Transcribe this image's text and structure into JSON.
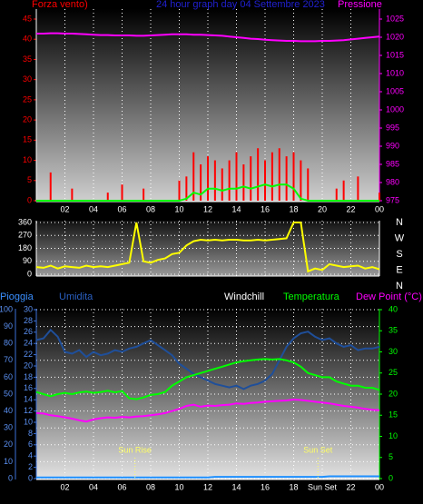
{
  "chart_data": [
    {
      "type": "bar",
      "title": "24 hour graph day 04 Settembre 2023",
      "ylabel": "Forza vento)",
      "y2label": "Pressione",
      "x": [
        0,
        0.5,
        1,
        1.5,
        2,
        2.5,
        3,
        3.5,
        4,
        4.5,
        5,
        5.5,
        6,
        6.5,
        7,
        7.5,
        8,
        8.5,
        9,
        9.5,
        10,
        10.5,
        11,
        11.5,
        12,
        12.5,
        13,
        13.5,
        14,
        14.5,
        15,
        15.5,
        16,
        16.5,
        17,
        17.5,
        18,
        18.5,
        19,
        19.5,
        20,
        20.5,
        21,
        21.5,
        22,
        22.5,
        23,
        23.5,
        24
      ],
      "xlim": [
        0,
        24
      ],
      "xticks": [
        {
          "value": 2,
          "label": "02"
        },
        {
          "value": 4,
          "label": "04"
        },
        {
          "value": 6,
          "label": "06"
        },
        {
          "value": 8,
          "label": "08"
        },
        10,
        12,
        14,
        16,
        18,
        20,
        22,
        {
          "value": 24,
          "label": "00"
        }
      ],
      "ylim": [
        0,
        45
      ],
      "yticks": [
        0,
        5,
        10,
        15,
        20,
        25,
        30,
        35,
        40,
        45
      ],
      "y2lim": [
        975,
        1025
      ],
      "y2ticks": [
        975,
        980,
        985,
        990,
        995,
        1000,
        1005,
        1010,
        1015,
        1020,
        1025
      ],
      "grid": true,
      "series": [
        {
          "color": "#ff0000",
          "values": [
            0,
            0,
            7,
            0,
            0,
            3,
            0,
            0,
            0,
            0,
            2,
            0,
            4,
            0,
            0,
            3,
            0,
            0,
            0,
            0,
            5,
            6,
            12,
            9,
            11,
            10,
            8,
            10,
            12,
            9,
            11,
            13,
            10,
            12,
            13,
            11,
            12,
            10,
            8,
            0,
            0,
            0,
            3,
            5,
            0,
            6,
            0,
            0,
            2
          ]
        },
        {
          "type": "line",
          "color": "#00ff00",
          "values": [
            0,
            0,
            0,
            0,
            0,
            0,
            0,
            0,
            0,
            0,
            0,
            0,
            0,
            0,
            0,
            0,
            0,
            0,
            0,
            0,
            0,
            0.5,
            2,
            1.5,
            3,
            3,
            2.5,
            3,
            3,
            3.5,
            3,
            3.5,
            4,
            3.5,
            4,
            4,
            3,
            0.5,
            0,
            0,
            0,
            0,
            0,
            0,
            0,
            0,
            0,
            0,
            0
          ]
        },
        {
          "type": "line",
          "axis": "y2",
          "color": "#ff00ff",
          "values": [
            1021,
            1021,
            1021.1,
            1021.1,
            1021,
            1021,
            1020.9,
            1020.8,
            1020.7,
            1020.6,
            1020.6,
            1020.5,
            1020.5,
            1020.5,
            1020.4,
            1020.4,
            1020.5,
            1020.6,
            1020.7,
            1020.8,
            1020.8,
            1020.8,
            1020.7,
            1020.7,
            1020.6,
            1020.5,
            1020.4,
            1020.2,
            1020,
            1019.8,
            1019.6,
            1019.5,
            1019.3,
            1019.2,
            1019.1,
            1019,
            1019,
            1018.9,
            1018.9,
            1018.9,
            1019,
            1019,
            1019.1,
            1019.2,
            1019.4,
            1019.6,
            1019.8,
            1020,
            1020.2
          ]
        }
      ]
    },
    {
      "type": "line",
      "x": [
        0,
        0.5,
        1,
        1.5,
        2,
        2.5,
        3,
        3.5,
        4,
        4.5,
        5,
        5.5,
        6,
        6.5,
        7,
        7.5,
        8,
        8.5,
        9,
        9.5,
        10,
        10.5,
        11,
        11.5,
        12,
        12.5,
        13,
        13.5,
        14,
        14.5,
        15,
        15.5,
        16,
        16.5,
        17,
        17.5,
        18,
        18.5,
        19,
        19.5,
        20,
        20.5,
        21,
        21.5,
        22,
        22.5,
        23,
        23.5,
        24
      ],
      "xlim": [
        0,
        24
      ],
      "xticks": [
        2,
        4,
        6,
        8,
        10,
        12,
        14,
        16,
        18,
        20,
        22,
        24
      ],
      "ylim": [
        0,
        360
      ],
      "yticks": [
        0,
        90,
        180,
        270,
        360
      ],
      "grid": true,
      "dir_labels": [
        "N",
        "W",
        "S",
        "E",
        "N"
      ],
      "series": [
        {
          "color": "#ffff00",
          "values": [
            50,
            45,
            60,
            40,
            55,
            50,
            45,
            60,
            50,
            55,
            50,
            60,
            70,
            80,
            360,
            90,
            80,
            100,
            110,
            140,
            150,
            200,
            230,
            240,
            235,
            240,
            235,
            240,
            240,
            235,
            235,
            240,
            235,
            240,
            245,
            250,
            360,
            360,
            20,
            40,
            30,
            70,
            60,
            50,
            55,
            60,
            40,
            50,
            35
          ]
        }
      ]
    },
    {
      "type": "line",
      "x": [
        0,
        0.5,
        1,
        1.5,
        2,
        2.5,
        3,
        3.5,
        4,
        4.5,
        5,
        5.5,
        6,
        6.5,
        7,
        7.5,
        8,
        8.5,
        9,
        9.5,
        10,
        10.5,
        11,
        11.5,
        12,
        12.5,
        13,
        13.5,
        14,
        14.5,
        15,
        15.5,
        16,
        16.5,
        17,
        17.5,
        18,
        18.5,
        19,
        19.5,
        20,
        20.5,
        21,
        21.5,
        22,
        22.5,
        23,
        23.5,
        24
      ],
      "xlim": [
        0,
        24
      ],
      "xticks": [
        {
          "value": 2,
          "label": "02"
        },
        {
          "value": 4,
          "label": "04"
        },
        {
          "value": 6,
          "label": "06"
        },
        {
          "value": 8,
          "label": "08"
        },
        10,
        12,
        14,
        16,
        18,
        {
          "value": 20,
          "label": "Sun Set"
        },
        22,
        {
          "value": 24,
          "label": "00"
        }
      ],
      "ylim": [
        0,
        100
      ],
      "yticks": [
        0,
        10,
        20,
        30,
        40,
        50,
        60,
        70,
        80,
        90,
        100
      ],
      "y3lim": [
        0,
        30
      ],
      "y3ticks": [
        0,
        2,
        4,
        6,
        8,
        10,
        12,
        14,
        16,
        18,
        20,
        22,
        24,
        26,
        28,
        30
      ],
      "y2lim": [
        0,
        40
      ],
      "y2ticks": [
        0,
        5,
        10,
        15,
        20,
        25,
        30,
        35,
        40
      ],
      "grid": true,
      "labels": [
        "Windchill"
      ],
      "annotations": [
        {
          "text": "Sun Rise",
          "x": 6.9
        },
        {
          "text": "Sun Set",
          "x": 19.7
        }
      ],
      "series": [
        {
          "name": "Pioggia",
          "axis": "y3",
          "color": "#1e90ff",
          "values": [
            0.2,
            0.2,
            0.2,
            0.2,
            0.2,
            0.2,
            0.2,
            0.2,
            0.2,
            0.2,
            0.2,
            0.2,
            0.2,
            0.2,
            0.2,
            0.2,
            0.2,
            0.2,
            0.2,
            0.2,
            0.2,
            0.2,
            0.2,
            0.2,
            0.2,
            0.3,
            0.3,
            0.3,
            0.3,
            0.3,
            0.3,
            0.3,
            0.3,
            0.3,
            0.3,
            0.3,
            0.3,
            0.3,
            0.3,
            0.3,
            0.3,
            0.4,
            0.4,
            0.4,
            0.4,
            0.4,
            0.4,
            0.4,
            0.4
          ]
        },
        {
          "name": "Umidita",
          "color": "#1f4f9a",
          "values": [
            82,
            83,
            88,
            84,
            75,
            74,
            76,
            72,
            75,
            73,
            74,
            76,
            75,
            77,
            78,
            80,
            82,
            79,
            76,
            73,
            68,
            65,
            62,
            60,
            58,
            56,
            55,
            54,
            55,
            53,
            55,
            56,
            58,
            62,
            70,
            78,
            83,
            86,
            87,
            84,
            82,
            83,
            80,
            78,
            79,
            76,
            77,
            77,
            78
          ]
        },
        {
          "name": "Temperatura",
          "axis": "y2",
          "color": "#00ff00",
          "values": [
            20.5,
            20,
            19.5,
            20,
            20.3,
            20,
            20.4,
            20.6,
            20.3,
            20.5,
            20.8,
            20.4,
            20.7,
            19,
            18.8,
            19.2,
            19.8,
            20,
            20.5,
            22,
            23,
            24,
            24.5,
            25,
            25.5,
            26,
            26.5,
            27,
            27.5,
            27.8,
            28,
            28.2,
            28.3,
            28.2,
            28.3,
            28,
            27.5,
            26.5,
            25,
            24.5,
            24,
            24,
            23,
            22.5,
            22,
            22,
            21.5,
            21.5,
            21
          ]
        },
        {
          "name": "Dew Point (°C)",
          "axis": "y2",
          "color": "#ff00ff",
          "values": [
            15.5,
            15.4,
            15,
            14.8,
            14.5,
            14.2,
            13.8,
            13.5,
            14,
            14.3,
            14.5,
            14.4,
            14.6,
            14.5,
            14.7,
            14.8,
            15,
            15.2,
            15.5,
            16,
            16.5,
            17.2,
            17.5,
            17,
            17.3,
            17.2,
            17.4,
            17.5,
            17.8,
            17.7,
            17.9,
            18,
            18.2,
            18.3,
            18.4,
            18.5,
            18.7,
            18.6,
            18.4,
            18.2,
            18,
            17.8,
            17.5,
            17.2,
            17,
            16.8,
            16.5,
            16.3,
            16.2
          ]
        }
      ]
    }
  ]
}
